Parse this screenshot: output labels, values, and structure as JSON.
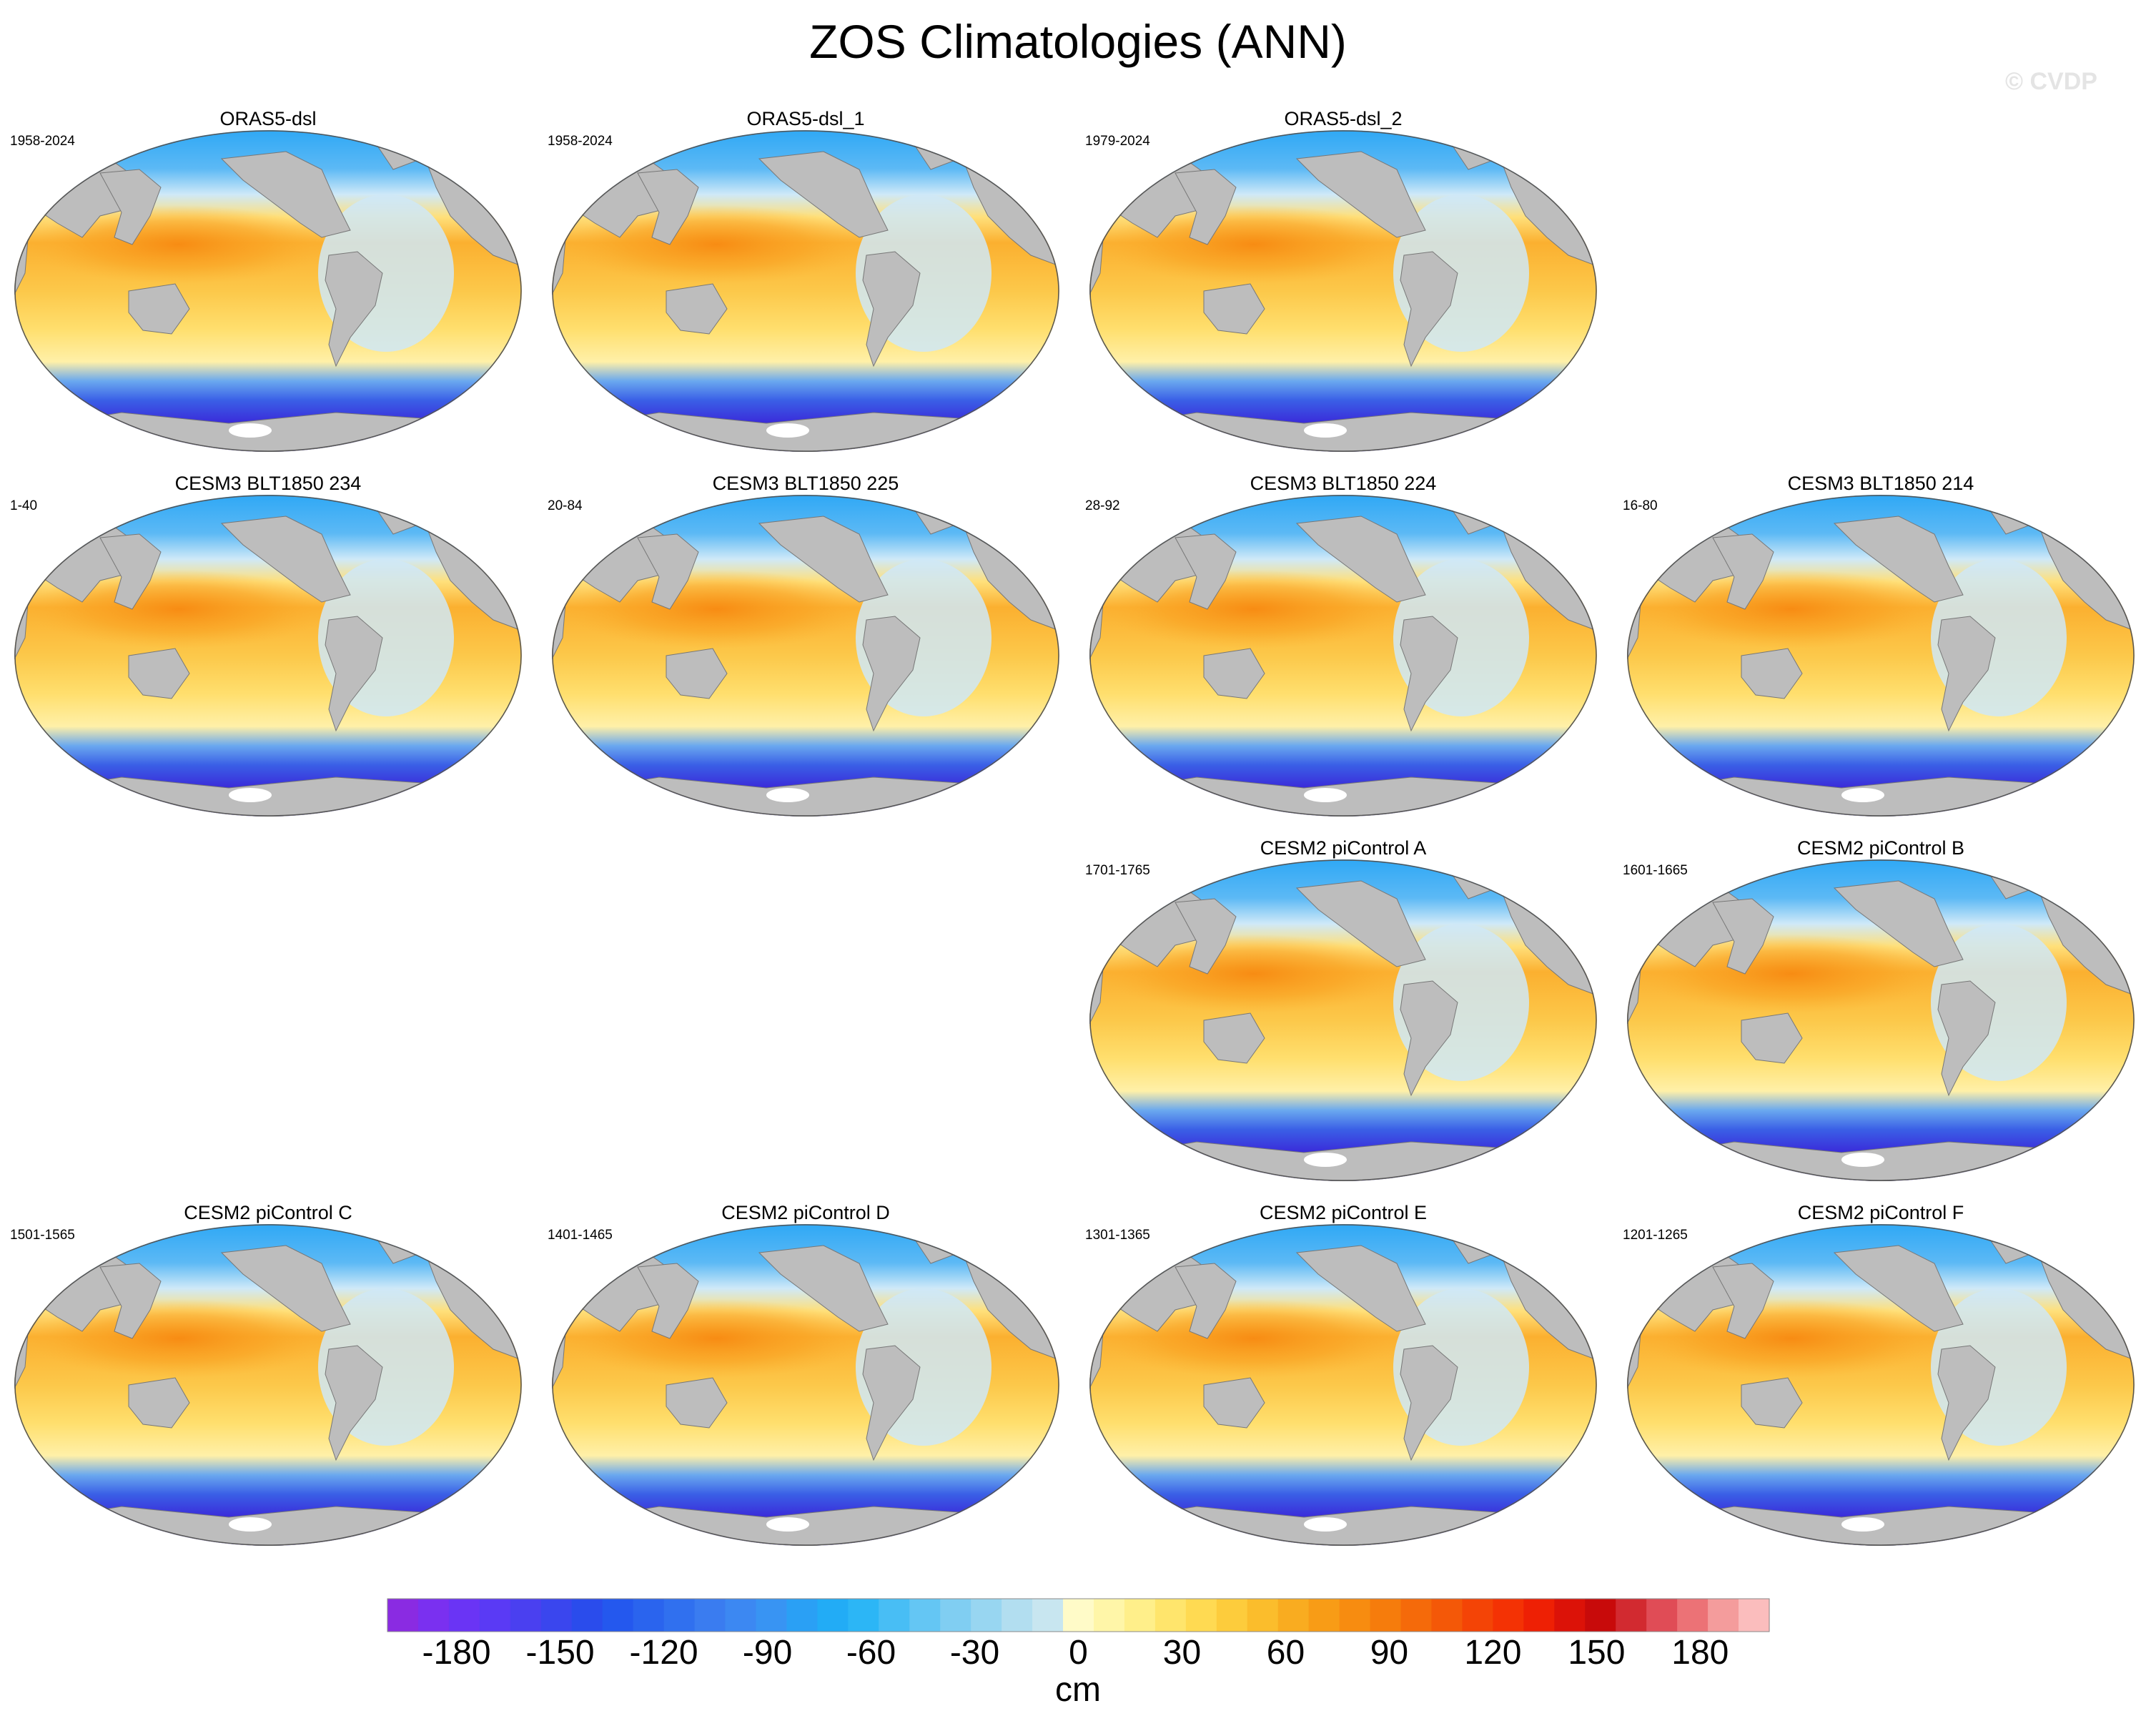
{
  "title": "ZOS Climatologies (ANN)",
  "watermark": "© CVDP",
  "chart_data": {
    "type": "heatmap",
    "description_kind": "grid of global map panels of annual mean sea surface height (ZOS)",
    "variable": "ZOS",
    "season": "ANN",
    "projection": "Robinson-like global, Pacific-centred",
    "panels": [
      {
        "title": "ORAS5-dsl",
        "years": "1958-2024"
      },
      {
        "title": "ORAS5-dsl_1",
        "years": "1958-2024"
      },
      {
        "title": "ORAS5-dsl_2",
        "years": "1979-2024"
      },
      {
        "title": "CESM3 BLT1850 234",
        "years": "1-40"
      },
      {
        "title": "CESM3 BLT1850 225",
        "years": "20-84"
      },
      {
        "title": "CESM3 BLT1850 224",
        "years": "28-92"
      },
      {
        "title": "CESM3 BLT1850 214",
        "years": "16-80"
      },
      {
        "title": "CESM2 piControl A",
        "years": "1701-1765"
      },
      {
        "title": "CESM2 piControl B",
        "years": "1601-1665"
      },
      {
        "title": "CESM2 piControl C",
        "years": "1501-1565"
      },
      {
        "title": "CESM2 piControl D",
        "years": "1401-1465"
      },
      {
        "title": "CESM2 piControl E",
        "years": "1301-1365"
      },
      {
        "title": "CESM2 piControl F",
        "years": "1201-1265"
      }
    ],
    "colorbar": {
      "units": "cm",
      "range": [
        -200,
        200
      ],
      "interval": 10,
      "ticks": [
        -180,
        -150,
        -120,
        -90,
        -60,
        -30,
        0,
        30,
        60,
        90,
        120,
        150,
        180
      ],
      "tick_labels": [
        "-180",
        "-150",
        "-120",
        "-90",
        "-60",
        "-30",
        "0",
        "30",
        "60",
        "90",
        "120",
        "150",
        "180"
      ]
    }
  }
}
